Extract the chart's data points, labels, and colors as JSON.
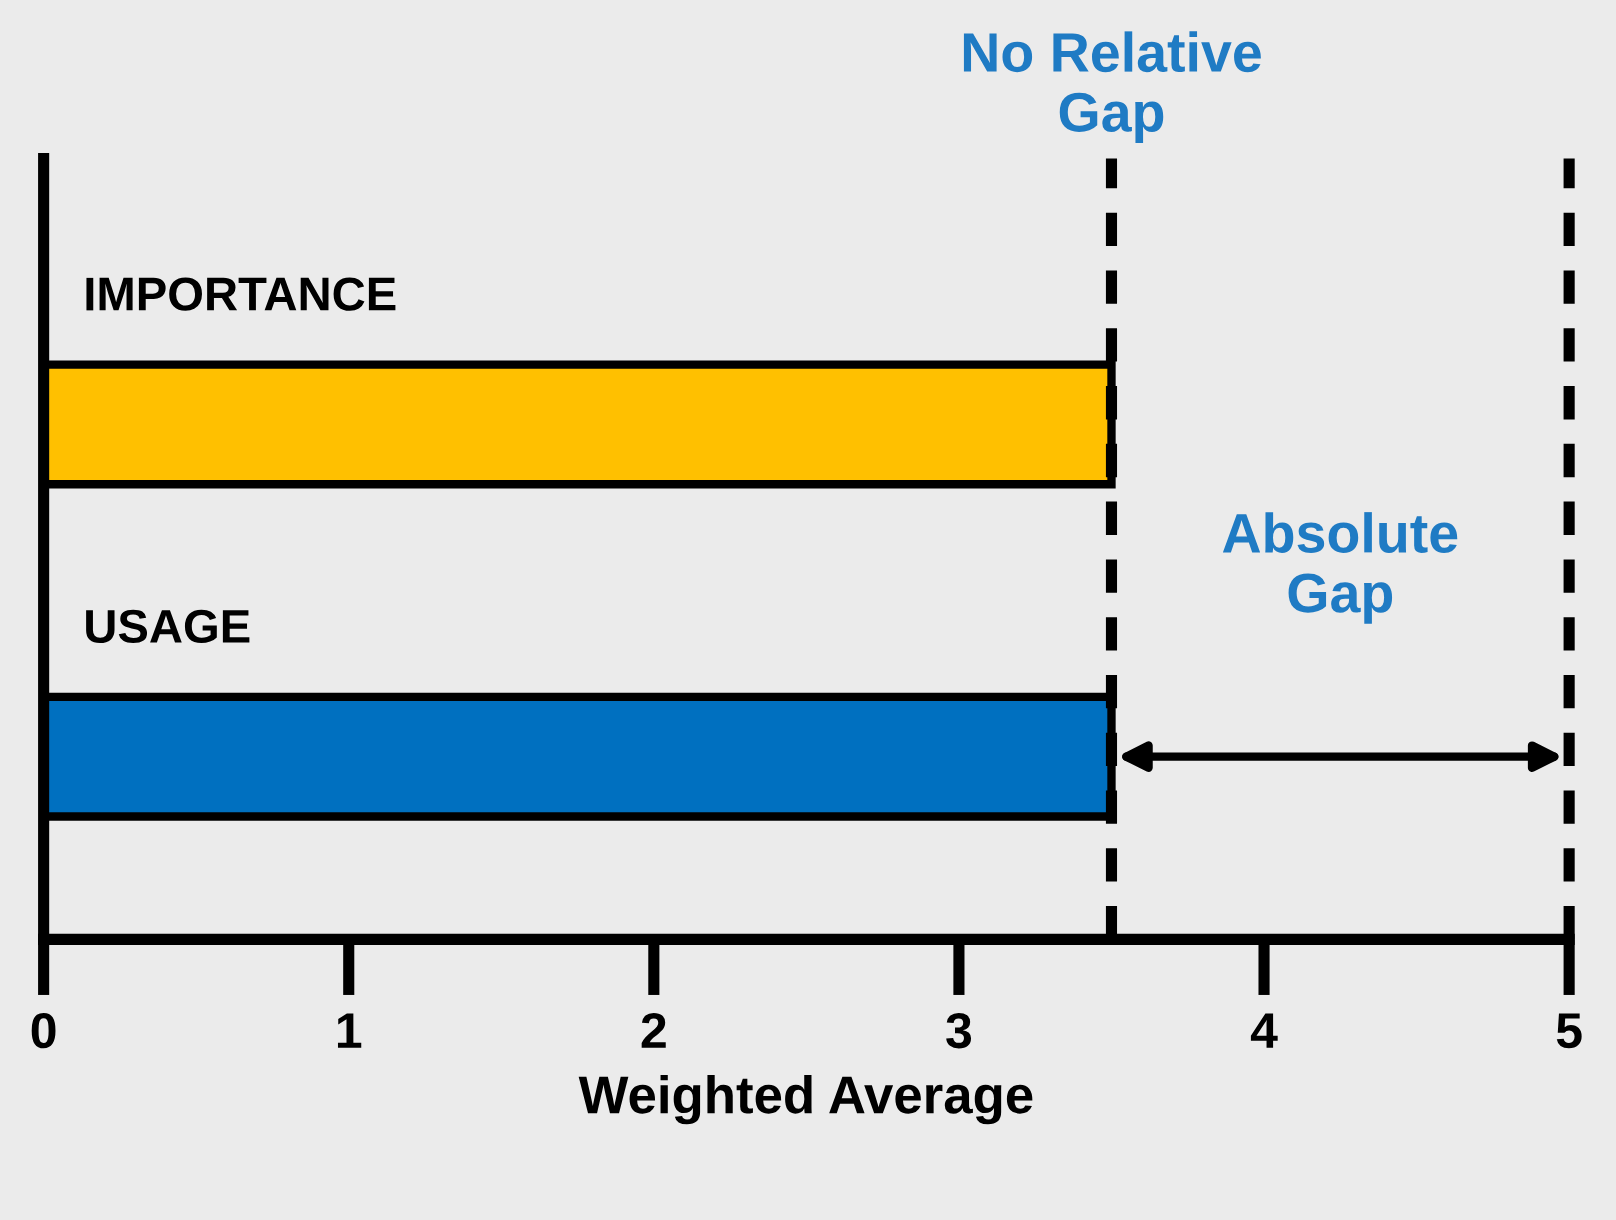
{
  "chart_data": {
    "type": "bar",
    "orientation": "horizontal",
    "xlabel": "Weighted Average",
    "categories": [
      "IMPORTANCE",
      "USAGE"
    ],
    "values": [
      3.5,
      3.5
    ],
    "colors": [
      "#ffc000",
      "#0070c0"
    ],
    "xlim": [
      0,
      5
    ],
    "xticks": [
      0,
      1,
      2,
      3,
      4,
      5
    ],
    "tick_labels": "x",
    "grid": false,
    "legend": false,
    "ref_lines": [
      {
        "axis": "x",
        "value": 3.5,
        "label": "No Relative\nGap",
        "line_style": "dashed",
        "color": "#000000"
      },
      {
        "axis": "x",
        "value": 5,
        "line_style": "dashed",
        "color": "#000000"
      }
    ],
    "annotations": [
      "Absolute\nGap"
    ]
  }
}
